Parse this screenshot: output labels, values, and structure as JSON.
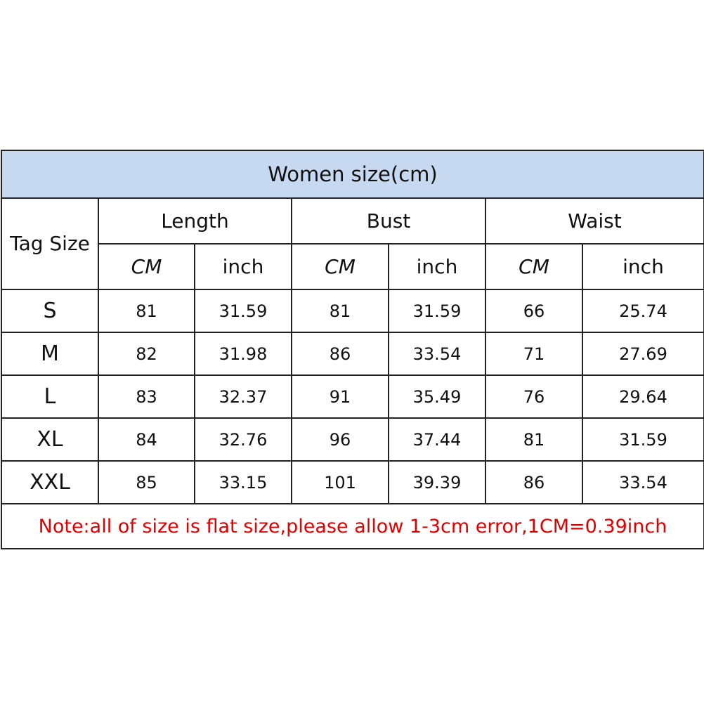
{
  "title": "Women size(cm)",
  "header": {
    "tag_size": "Tag Size",
    "groups": [
      "Length",
      "Bust",
      "Waist"
    ],
    "units": [
      "CM",
      "inch",
      "CM",
      "inch",
      "CM",
      "inch"
    ]
  },
  "rows": [
    {
      "size": "S",
      "values": [
        "81",
        "31.59",
        "81",
        "31.59",
        "66",
        "25.74"
      ]
    },
    {
      "size": "M",
      "values": [
        "82",
        "31.98",
        "86",
        "33.54",
        "71",
        "27.69"
      ]
    },
    {
      "size": "L",
      "values": [
        "83",
        "32.37",
        "91",
        "35.49",
        "76",
        "29.64"
      ]
    },
    {
      "size": "XL",
      "values": [
        "84",
        "32.76",
        "96",
        "37.44",
        "81",
        "31.59"
      ]
    },
    {
      "size": "XXL",
      "values": [
        "85",
        "33.15",
        "101",
        "39.39",
        "86",
        "33.54"
      ]
    }
  ],
  "note": "Note:all of size is flat size,please allow 1-3cm error,1CM=0.39inch",
  "colors": {
    "title_bg": "#c6d9f0",
    "note_text": "#e00000",
    "border": "#222222"
  }
}
